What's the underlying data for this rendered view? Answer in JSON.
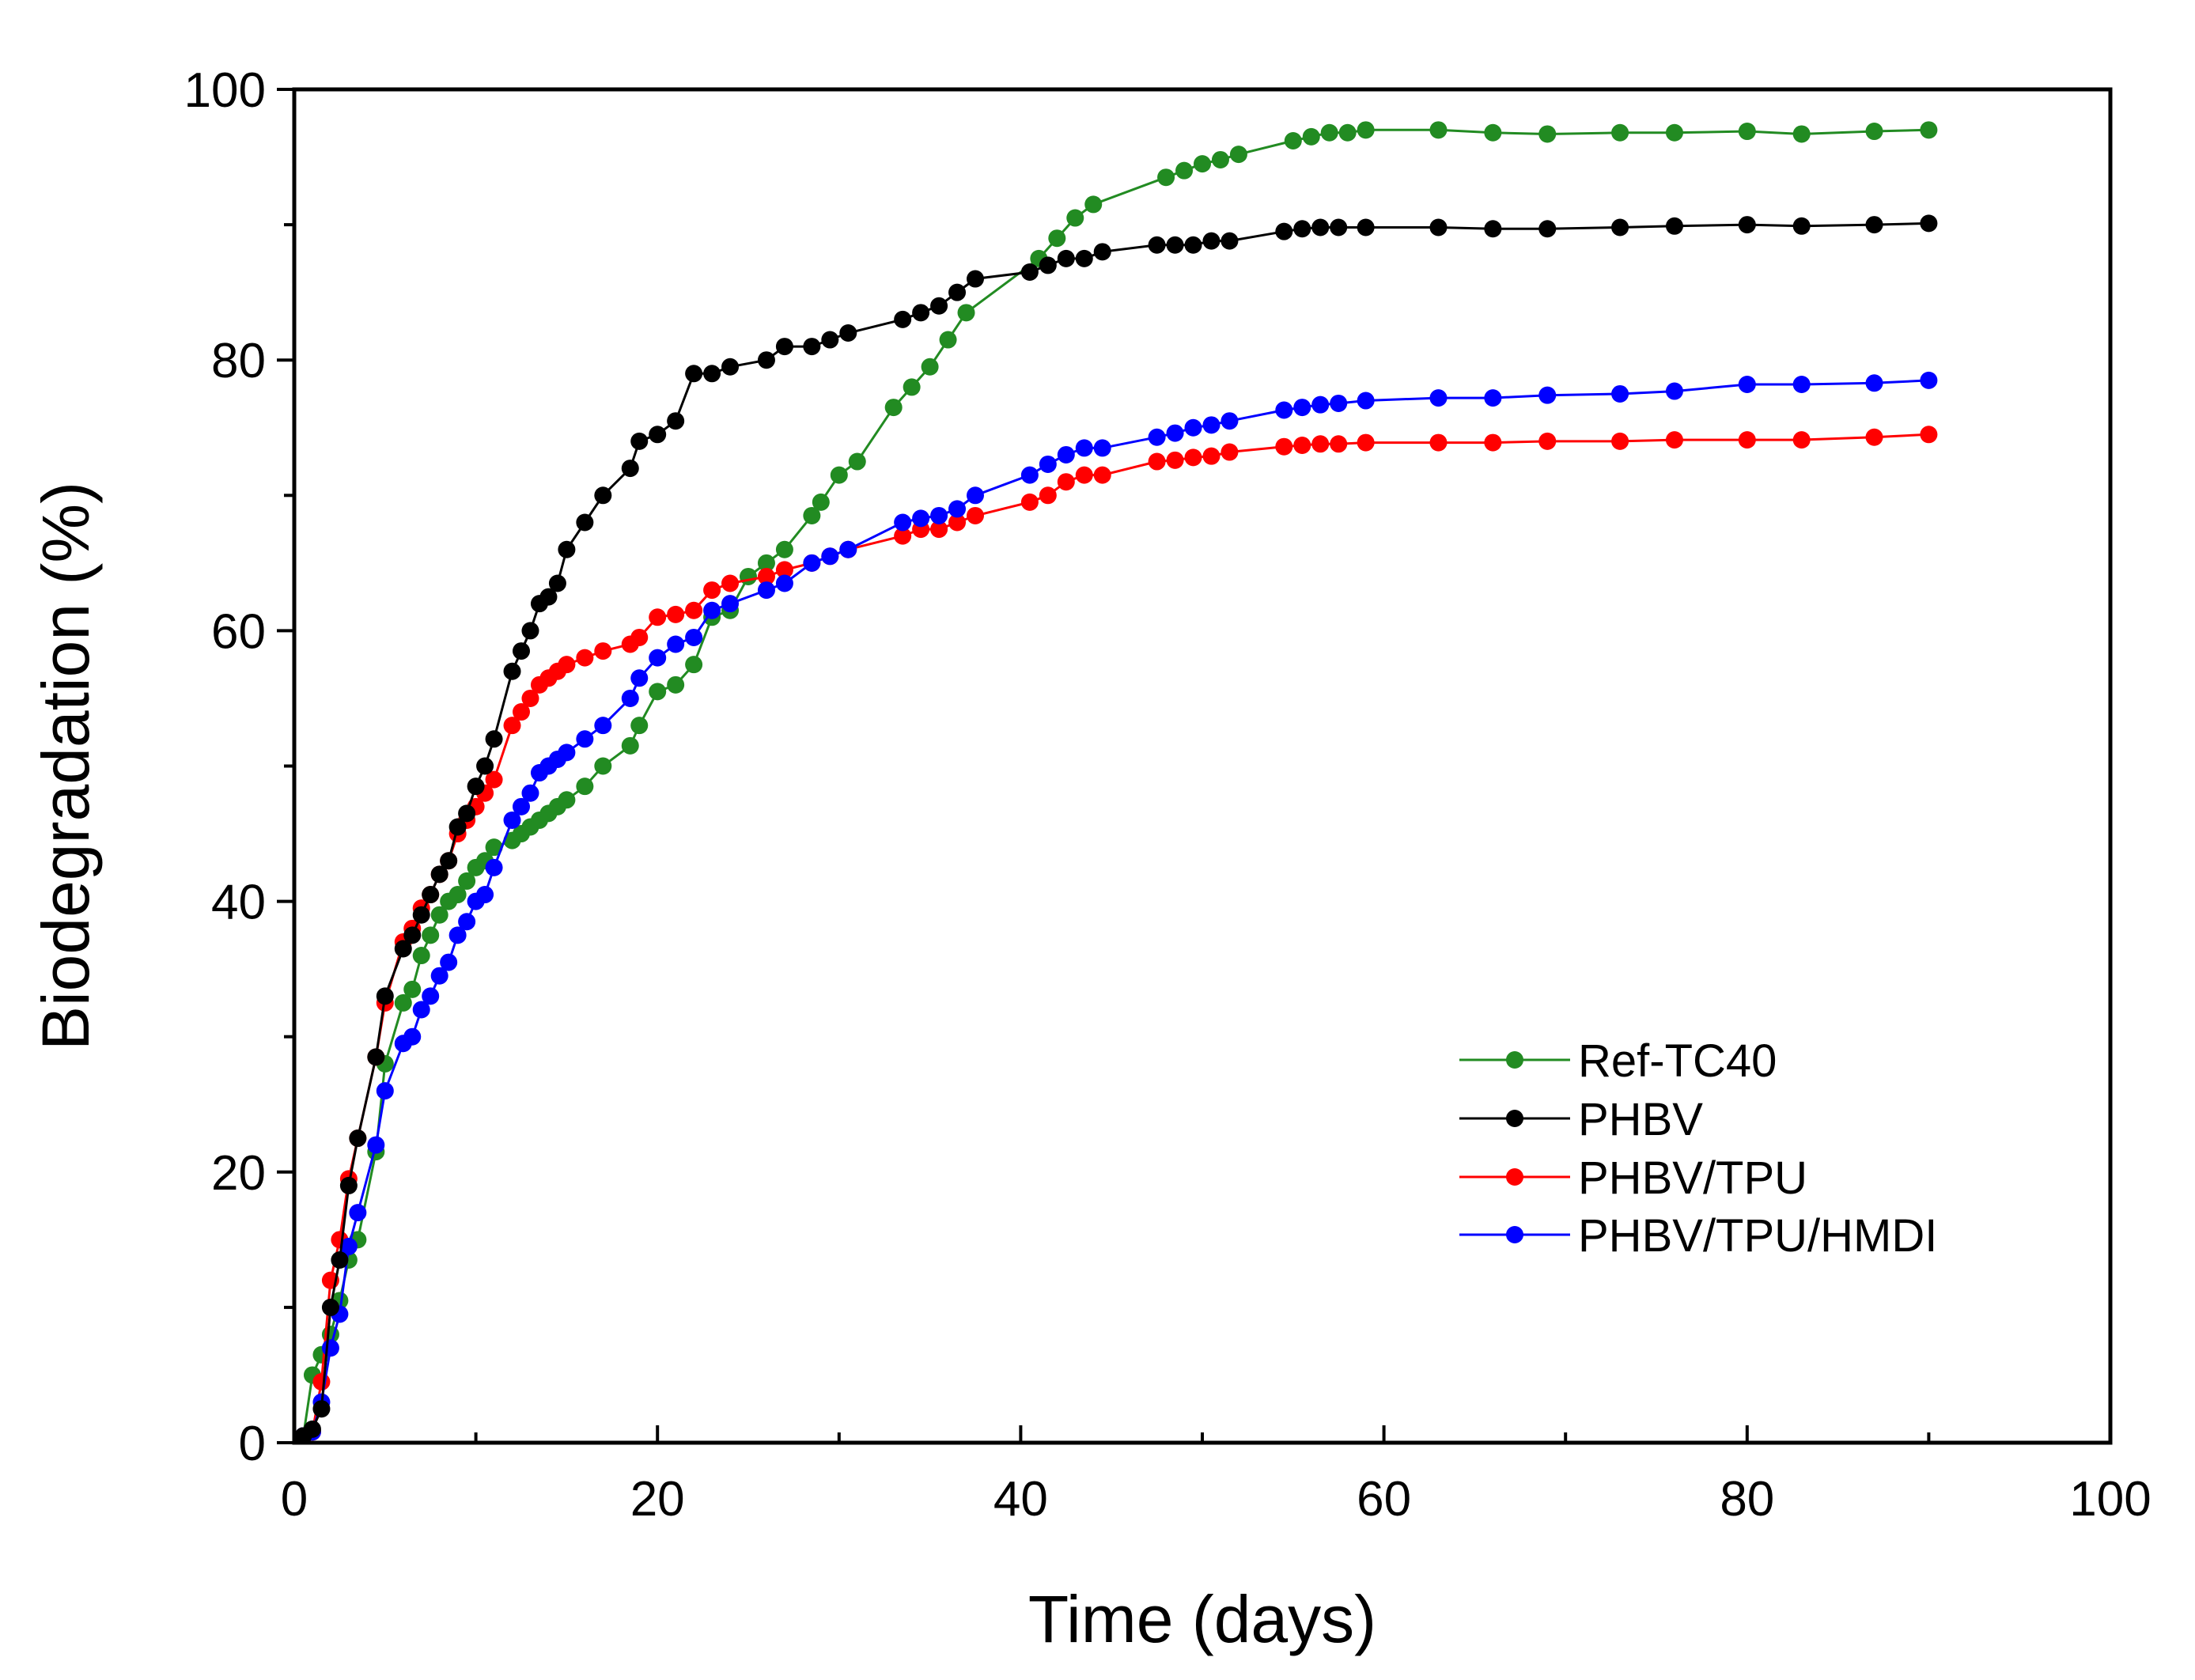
{
  "chart_data": {
    "type": "line",
    "title": "",
    "xlabel": "Time (days)",
    "ylabel": "Biodegradation (%)",
    "xlim": [
      0,
      100
    ],
    "ylim": [
      0,
      100
    ],
    "xticks": [
      0,
      20,
      40,
      60,
      80,
      100
    ],
    "yticks": [
      0,
      20,
      40,
      60,
      80,
      100
    ],
    "grid": false,
    "legend_position": "bottom-right",
    "series": [
      {
        "name": "Ref-TC40",
        "color": "#228B22",
        "x": [
          0.5,
          1,
          1.5,
          2,
          2.5,
          3,
          3.5,
          4.5,
          5,
          6,
          6.5,
          7,
          7.5,
          8,
          8.5,
          9,
          9.5,
          10,
          10.5,
          11,
          12,
          12.5,
          13,
          13.5,
          14,
          14.5,
          15,
          16,
          17,
          18.5,
          19,
          20,
          21,
          22,
          23,
          24,
          25,
          26,
          27,
          28.5,
          29,
          30,
          31,
          33,
          34,
          35,
          36,
          37,
          41,
          42,
          43,
          44,
          48,
          49,
          50,
          51,
          52,
          55,
          56,
          57,
          58,
          59,
          63,
          66,
          69,
          73,
          76,
          80,
          83,
          87,
          90
        ],
        "values": [
          0.5,
          5,
          6.5,
          8,
          10.5,
          13.5,
          15,
          21.5,
          28,
          32.5,
          33.5,
          36,
          37.5,
          39,
          40,
          40.5,
          41.5,
          42.5,
          43,
          44,
          44.5,
          45,
          45.5,
          46,
          46.5,
          47,
          47.5,
          48.5,
          50,
          51.5,
          53,
          55.5,
          56,
          57.5,
          61,
          61.5,
          64,
          65,
          66,
          68.5,
          69.5,
          71.5,
          72.5,
          76.5,
          78,
          79.5,
          81.5,
          83.5,
          87.5,
          89,
          90.5,
          91.5,
          93.5,
          94,
          94.5,
          94.8,
          95.2,
          96.2,
          96.5,
          96.8,
          96.8,
          97,
          97,
          96.8,
          96.7,
          96.8,
          96.8,
          96.9,
          96.7,
          96.9,
          97
        ]
      },
      {
        "name": "PHBV",
        "color": "#000000",
        "x": [
          0.5,
          1,
          1.5,
          2,
          2.5,
          3,
          3.5,
          4.5,
          5,
          6,
          6.5,
          7,
          7.5,
          8,
          8.5,
          9,
          9.5,
          10,
          10.5,
          11,
          12,
          12.5,
          13,
          13.5,
          14,
          14.5,
          15,
          16,
          17,
          18.5,
          19,
          20,
          21,
          22,
          23,
          24,
          26,
          27,
          28.5,
          29.5,
          30.5,
          33.5,
          34.5,
          35.5,
          36.5,
          37.5,
          40.5,
          41.5,
          42.5,
          43.5,
          44.5,
          47.5,
          48.5,
          49.5,
          50.5,
          51.5,
          54.5,
          55.5,
          56.5,
          57.5,
          59,
          63,
          66,
          69,
          73,
          76,
          80,
          83,
          87,
          90
        ],
        "values": [
          0.5,
          1,
          2.5,
          10,
          13.5,
          19,
          22.5,
          28.5,
          33,
          36.5,
          37.5,
          39,
          40.5,
          42,
          43,
          45.5,
          46.5,
          48.5,
          50,
          52,
          57,
          58.5,
          60,
          62,
          62.5,
          63.5,
          66,
          68,
          70,
          72,
          74,
          74.5,
          75.5,
          79,
          79,
          79.5,
          80,
          81,
          81,
          81.5,
          82,
          83,
          83.5,
          84,
          85,
          86,
          86.5,
          87,
          87.5,
          87.5,
          88,
          88.5,
          88.5,
          88.5,
          88.8,
          88.8,
          89.5,
          89.7,
          89.8,
          89.8,
          89.8,
          89.8,
          89.7,
          89.7,
          89.8,
          89.9,
          90,
          89.9,
          90,
          90.1
        ]
      },
      {
        "name": "PHBV/TPU",
        "color": "#FF0000",
        "x": [
          0.5,
          1,
          1.5,
          2,
          2.5,
          3,
          3.5,
          4.5,
          5,
          6,
          6.5,
          7,
          7.5,
          8,
          8.5,
          9,
          9.5,
          10,
          10.5,
          11,
          12,
          12.5,
          13,
          13.5,
          14,
          14.5,
          15,
          16,
          17,
          18.5,
          19,
          20,
          21,
          22,
          23,
          24,
          26,
          27,
          28.5,
          29.5,
          30.5,
          33.5,
          34.5,
          35.5,
          36.5,
          37.5,
          40.5,
          41.5,
          42.5,
          43.5,
          44.5,
          47.5,
          48.5,
          49.5,
          50.5,
          51.5,
          54.5,
          55.5,
          56.5,
          57.5,
          59,
          63,
          66,
          69,
          73,
          76,
          80,
          83,
          87,
          90
        ],
        "values": [
          0.5,
          0.8,
          4.5,
          12,
          15,
          19.5,
          22.5,
          28.5,
          32.5,
          37,
          38,
          39.5,
          40.5,
          42,
          43,
          45,
          46,
          47,
          48,
          49,
          53,
          54,
          55,
          56,
          56.5,
          57,
          57.5,
          58,
          58.5,
          59,
          59.5,
          61,
          61.2,
          61.5,
          63,
          63.5,
          64,
          64.5,
          65,
          65.5,
          66,
          67,
          67.5,
          67.5,
          68,
          68.5,
          69.5,
          70,
          71,
          71.5,
          71.5,
          72.5,
          72.6,
          72.8,
          72.9,
          73.2,
          73.6,
          73.7,
          73.8,
          73.8,
          73.9,
          73.9,
          73.9,
          74,
          74,
          74.1,
          74.1,
          74.1,
          74.3,
          74.5
        ]
      },
      {
        "name": "PHBV/TPU/HMDI",
        "color": "#0000FF",
        "x": [
          0.5,
          1,
          1.5,
          2,
          2.5,
          3,
          3.5,
          4.5,
          5,
          6,
          6.5,
          7,
          7.5,
          8,
          8.5,
          9,
          9.5,
          10,
          10.5,
          11,
          12,
          12.5,
          13,
          13.5,
          14,
          14.5,
          15,
          16,
          17,
          18.5,
          19,
          20,
          21,
          22,
          23,
          24,
          26,
          27,
          28.5,
          29.5,
          30.5,
          33.5,
          34.5,
          35.5,
          36.5,
          37.5,
          40.5,
          41.5,
          42.5,
          43.5,
          44.5,
          47.5,
          48.5,
          49.5,
          50.5,
          51.5,
          54.5,
          55.5,
          56.5,
          57.5,
          59,
          63,
          66,
          69,
          73,
          76,
          80,
          83,
          87,
          90
        ],
        "values": [
          0.5,
          0.8,
          3,
          7,
          9.5,
          14.5,
          17,
          22,
          26,
          29.5,
          30,
          32,
          33,
          34.5,
          35.5,
          37.5,
          38.5,
          40,
          40.5,
          42.5,
          46,
          47,
          48,
          49.5,
          50,
          50.5,
          51,
          52,
          53,
          55,
          56.5,
          58,
          59,
          59.5,
          61.5,
          62,
          63,
          63.5,
          65,
          65.5,
          66,
          68,
          68.3,
          68.5,
          69,
          70,
          71.5,
          72.3,
          73,
          73.5,
          73.5,
          74.3,
          74.6,
          75,
          75.2,
          75.5,
          76.3,
          76.5,
          76.7,
          76.8,
          77,
          77.2,
          77.2,
          77.4,
          77.5,
          77.7,
          78.2,
          78.2,
          78.3,
          78.5
        ]
      }
    ]
  }
}
